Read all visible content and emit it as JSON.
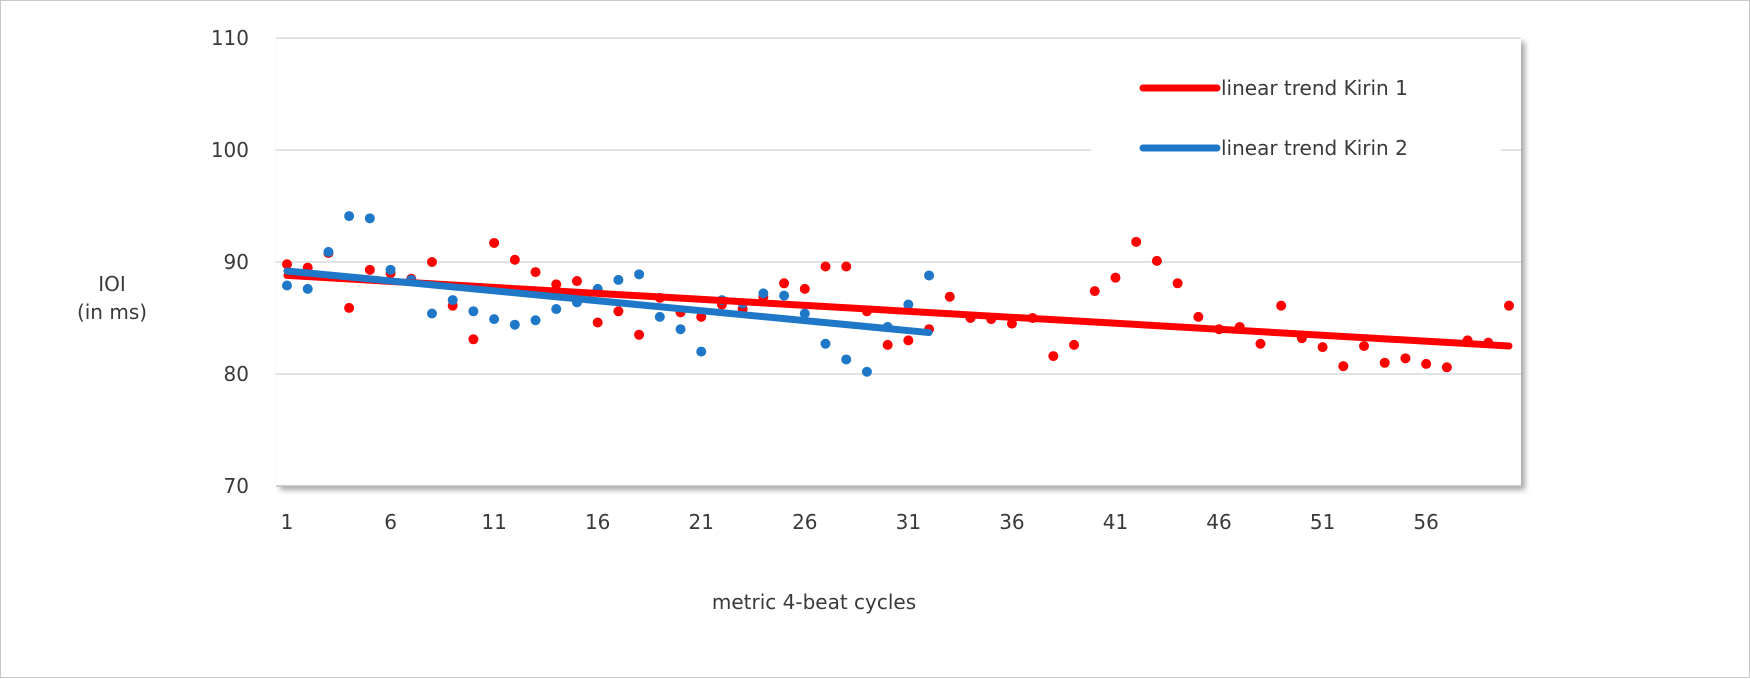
{
  "chart_data": {
    "type": "scatter",
    "title": "",
    "xlabel": "metric 4-beat cycles",
    "ylabel_lines": [
      "IOI",
      "(in ms)"
    ],
    "ylim": [
      70,
      110
    ],
    "xlim": [
      1,
      60
    ],
    "yticks": [
      70,
      80,
      90,
      100,
      110
    ],
    "xticks": [
      1,
      6,
      11,
      16,
      21,
      26,
      31,
      36,
      41,
      46,
      51,
      56
    ],
    "grid": "horizontal",
    "legend_position": "top-right",
    "series": [
      {
        "kind": "points",
        "color": "#ff0000",
        "x": [
          1,
          2,
          3,
          4,
          5,
          6,
          7,
          8,
          9,
          10,
          11,
          12,
          13,
          14,
          15,
          16,
          17,
          18,
          19,
          20,
          21,
          22,
          23,
          24,
          25,
          26,
          27,
          28,
          29,
          30,
          31,
          32,
          33,
          34,
          35,
          36,
          37,
          38,
          39,
          40,
          41,
          42,
          43,
          44,
          45,
          46,
          47,
          48,
          49,
          50,
          51,
          52,
          53,
          54,
          55,
          56,
          57,
          58,
          59,
          60
        ],
        "y": [
          89.8,
          89.5,
          90.8,
          85.9,
          89.3,
          89.0,
          88.5,
          90.0,
          86.1,
          83.1,
          91.7,
          90.2,
          89.1,
          88.0,
          88.3,
          84.6,
          85.6,
          83.5,
          86.8,
          85.5,
          85.1,
          86.2,
          85.8,
          86.9,
          88.1,
          87.6,
          89.6,
          89.6,
          85.6,
          82.6,
          83.0,
          84.0,
          86.9,
          85.0,
          84.9,
          84.5,
          85.0,
          81.6,
          82.6,
          87.4,
          88.6,
          91.8,
          90.1,
          88.1,
          85.1,
          84.0,
          84.2,
          82.7,
          86.1,
          83.2,
          82.4,
          80.7,
          82.5,
          81.0,
          81.4,
          80.9,
          80.6,
          83.0,
          82.8,
          86.1
        ]
      },
      {
        "kind": "points",
        "color": "#1f77c8",
        "x": [
          1,
          2,
          3,
          4,
          5,
          6,
          7,
          8,
          9,
          10,
          11,
          12,
          13,
          14,
          15,
          16,
          17,
          18,
          19,
          20,
          21,
          22,
          23,
          24,
          25,
          26,
          27,
          28,
          29,
          30,
          31,
          32
        ],
        "y": [
          87.9,
          87.6,
          90.9,
          94.1,
          93.9,
          89.3,
          88.4,
          85.4,
          86.6,
          85.6,
          84.9,
          84.4,
          84.8,
          85.8,
          86.4,
          87.6,
          88.4,
          88.9,
          85.1,
          84.0,
          82.0,
          86.6,
          86.3,
          87.2,
          87.0,
          85.4,
          82.7,
          81.3,
          80.2,
          84.2,
          86.2,
          88.8
        ]
      },
      {
        "kind": "trend",
        "name": "linear trend Kirin 1",
        "color": "#ff0000",
        "x": [
          1,
          60
        ],
        "y": [
          88.8,
          82.5
        ]
      },
      {
        "kind": "trend",
        "name": "linear trend Kirin 2",
        "color": "#1f77c8",
        "x": [
          1,
          32
        ],
        "y": [
          89.2,
          83.7
        ]
      }
    ]
  }
}
